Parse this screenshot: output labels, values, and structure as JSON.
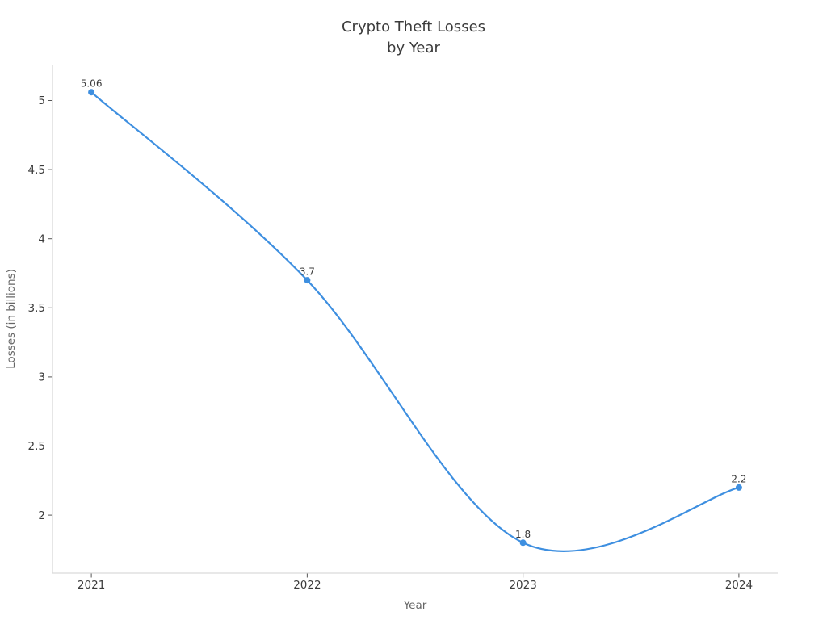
{
  "page": {
    "background": "#ffffff"
  },
  "chart_data": {
    "type": "line",
    "line_shape": "spline",
    "title": "Crypto Theft Losses\nby Year",
    "title_lines": [
      "Crypto Theft Losses",
      "by Year"
    ],
    "xlabel": "Year",
    "ylabel": "Losses (in billions)",
    "x": [
      2021,
      2022,
      2023,
      2024
    ],
    "y": [
      5.06,
      3.7,
      1.8,
      2.2
    ],
    "point_labels": [
      "5.06",
      "3.7",
      "1.8",
      "2.2"
    ],
    "x_tick_values": [
      2021,
      2022,
      2023,
      2024
    ],
    "x_tick_labels": [
      "2021",
      "2022",
      "2023",
      "2024"
    ],
    "y_tick_values": [
      2,
      2.5,
      3,
      3.5,
      4,
      4.5,
      5
    ],
    "y_tick_labels": [
      "2",
      "2.5",
      "3",
      "3.5",
      "4",
      "4.5",
      "5"
    ],
    "xlim": [
      2020.82,
      2024.18
    ],
    "ylim": [
      1.58,
      5.26
    ],
    "grid": false,
    "legend": false,
    "colors": {
      "line": "#3E8FE0",
      "marker": "#3E8FE0",
      "axis_line": "#d9d9d9",
      "tick_mark": "#555555",
      "tick_label": "#3b3b3b",
      "axis_title": "#666666",
      "title": "#3b3b3b",
      "point_label": "#3a3a3a"
    }
  }
}
